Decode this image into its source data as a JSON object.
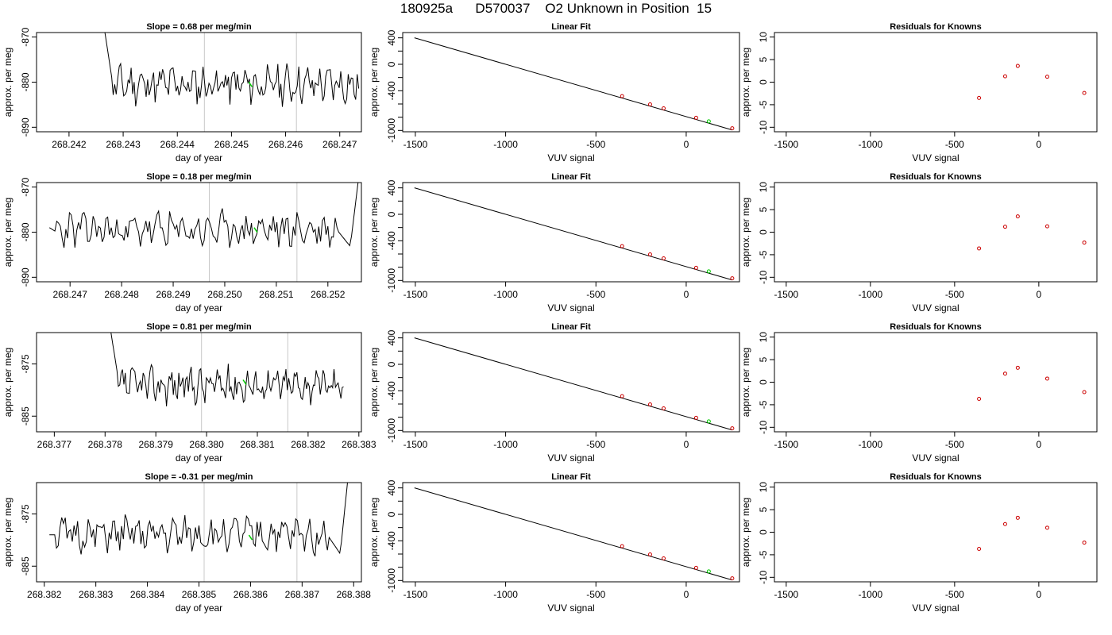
{
  "header": {
    "title": "180925a      D570037    O2 Unknown in Position  15"
  },
  "colors": {
    "series": "#000000",
    "known": "#cc0000",
    "unknown": "#00cc00",
    "marker": "#c8c8c8"
  },
  "chart_data": [
    {
      "type": "line",
      "panel": "drift",
      "row": 0,
      "title": "Slope =  0.68  per meg/min",
      "xlabel": "day of year",
      "ylabel": "approx. per meg",
      "xlim": [
        268.2414,
        268.2474
      ],
      "ylim": [
        -891,
        -869
      ],
      "xticks": [
        268.242,
        268.243,
        268.244,
        268.245,
        268.246,
        268.247
      ],
      "xtick_labels": [
        "268.242",
        "268.243",
        "268.244",
        "268.245",
        "268.246",
        "268.247"
      ],
      "yticks": [
        -870,
        -880,
        -890
      ],
      "ytick_labels": [
        "-870",
        "-880",
        "-890"
      ],
      "markers": [
        268.2445,
        268.2462
      ],
      "trace_start": 268.24265,
      "trace_end": 268.24735,
      "start_y": -868,
      "drop_y": -881,
      "mean": -880.5,
      "amp": 3.2,
      "seed": 11,
      "unknown_point": [
        268.24535,
        -880.5
      ],
      "late_rise": false
    },
    {
      "type": "scatter",
      "panel": "fit",
      "row": 0,
      "title": "Linear Fit",
      "xlabel": "VUV signal",
      "ylabel": "approx. per meg",
      "xlim": [
        -1570,
        295
      ],
      "ylim": [
        -1020,
        480
      ],
      "xticks": [
        -1500,
        -1000,
        -500,
        0
      ],
      "xtick_labels": [
        "-1500",
        "-1000",
        "-500",
        "0"
      ],
      "yticks": [
        400,
        0,
        -400,
        -1000
      ],
      "ytick_labels": [
        "400",
        "0",
        "-400",
        "-1000"
      ],
      "line": [
        [
          -1505,
          400
        ],
        [
          255,
          -993
        ]
      ],
      "knowns": [
        [
          -355,
          -482
        ],
        [
          -200,
          -606
        ],
        [
          -125,
          -666
        ],
        [
          55,
          -808
        ],
        [
          255,
          -968
        ]
      ],
      "unknown": [
        [
          125,
          -862
        ]
      ]
    },
    {
      "type": "scatter",
      "panel": "residuals",
      "row": 0,
      "title": "Residuals for Knowns",
      "xlabel": "VUV signal",
      "ylabel": "approx. per meg",
      "xlim": [
        -1570,
        345
      ],
      "ylim": [
        -11,
        11
      ],
      "xticks": [
        -1500,
        -1000,
        -500,
        0
      ],
      "xtick_labels": [
        "-1500",
        "-1000",
        "-500",
        "0"
      ],
      "yticks": [
        10,
        5,
        0,
        -5,
        -10
      ],
      "ytick_labels": [
        "10",
        "5",
        "0",
        "-5",
        "-10"
      ],
      "points": [
        [
          -355,
          -3.5
        ],
        [
          -200,
          1.3
        ],
        [
          -125,
          3.6
        ],
        [
          50,
          1.2
        ],
        [
          270,
          -2.4
        ]
      ]
    },
    {
      "type": "line",
      "panel": "drift",
      "row": 1,
      "title": "Slope =  0.18  per meg/min",
      "xlabel": "day of year",
      "ylabel": "approx. per meg",
      "xlim": [
        268.24635,
        268.25265
      ],
      "ylim": [
        -891,
        -869
      ],
      "xticks": [
        268.247,
        268.248,
        268.249,
        268.25,
        268.251,
        268.252
      ],
      "xtick_labels": [
        "268.247",
        "268.248",
        "268.249",
        "268.250",
        "268.251",
        "268.252"
      ],
      "yticks": [
        -870,
        -880,
        -890
      ],
      "ytick_labels": [
        "-870",
        "-880",
        "-890"
      ],
      "markers": [
        268.2497,
        268.2514
      ],
      "trace_start": 268.2466,
      "trace_end": 268.2526,
      "start_y": -879,
      "drop_y": -880,
      "mean": -879.5,
      "amp": 3.0,
      "seed": 23,
      "unknown_point": [
        268.2506,
        -879.5
      ],
      "late_rise": true
    },
    {
      "type": "scatter",
      "panel": "fit",
      "row": 1,
      "title": "Linear Fit",
      "xlabel": "VUV signal",
      "ylabel": "approx. per meg",
      "xlim": [
        -1570,
        295
      ],
      "ylim": [
        -1020,
        480
      ],
      "xticks": [
        -1500,
        -1000,
        -500,
        0
      ],
      "xtick_labels": [
        "-1500",
        "-1000",
        "-500",
        "0"
      ],
      "yticks": [
        400,
        0,
        -400,
        -1000
      ],
      "ytick_labels": [
        "400",
        "0",
        "-400",
        "-1000"
      ],
      "line": [
        [
          -1505,
          400
        ],
        [
          255,
          -993
        ]
      ],
      "knowns": [
        [
          -355,
          -482
        ],
        [
          -200,
          -606
        ],
        [
          -125,
          -666
        ],
        [
          55,
          -808
        ],
        [
          255,
          -968
        ]
      ],
      "unknown": [
        [
          125,
          -862
        ]
      ]
    },
    {
      "type": "scatter",
      "panel": "residuals",
      "row": 1,
      "title": "Residuals for Knowns",
      "xlabel": "VUV signal",
      "ylabel": "approx. per meg",
      "xlim": [
        -1570,
        345
      ],
      "ylim": [
        -11,
        11
      ],
      "xticks": [
        -1500,
        -1000,
        -500,
        0
      ],
      "xtick_labels": [
        "-1500",
        "-1000",
        "-500",
        "0"
      ],
      "yticks": [
        10,
        5,
        0,
        -5,
        -10
      ],
      "ytick_labels": [
        "10",
        "5",
        "0",
        "-5",
        "-10"
      ],
      "points": [
        [
          -355,
          -3.6
        ],
        [
          -200,
          1.2
        ],
        [
          -125,
          3.5
        ],
        [
          50,
          1.3
        ],
        [
          270,
          -2.3
        ]
      ]
    },
    {
      "type": "line",
      "panel": "drift",
      "row": 2,
      "title": "Slope =  0.81  per meg/min",
      "xlabel": "day of year",
      "ylabel": "approx. per meg",
      "xlim": [
        268.37665,
        268.38305
      ],
      "ylim": [
        -888,
        -869
      ],
      "xticks": [
        268.377,
        268.378,
        268.379,
        268.38,
        268.381,
        268.382,
        268.383
      ],
      "xtick_labels": [
        "268.377",
        "268.378",
        "268.379",
        "268.380",
        "268.381",
        "268.382",
        "268.383"
      ],
      "yticks": [
        -875,
        -885
      ],
      "ytick_labels": [
        "-875",
        "-885"
      ],
      "markers": [
        268.3799,
        268.3816
      ],
      "trace_start": 268.3781,
      "trace_end": 268.3827,
      "start_y": -868,
      "drop_y": -878,
      "mean": -879,
      "amp": 2.6,
      "seed": 37,
      "unknown_point": [
        268.38075,
        -878.5
      ],
      "late_rise": false
    },
    {
      "type": "scatter",
      "panel": "fit",
      "row": 2,
      "title": "Linear Fit",
      "xlabel": "VUV signal",
      "ylabel": "approx. per meg",
      "xlim": [
        -1570,
        295
      ],
      "ylim": [
        -1020,
        480
      ],
      "xticks": [
        -1500,
        -1000,
        -500,
        0
      ],
      "xtick_labels": [
        "-1500",
        "-1000",
        "-500",
        "0"
      ],
      "yticks": [
        400,
        0,
        -400,
        -1000
      ],
      "ytick_labels": [
        "400",
        "0",
        "-400",
        "-1000"
      ],
      "line": [
        [
          -1505,
          400
        ],
        [
          255,
          -993
        ]
      ],
      "knowns": [
        [
          -355,
          -482
        ],
        [
          -200,
          -606
        ],
        [
          -125,
          -666
        ],
        [
          55,
          -808
        ],
        [
          255,
          -968
        ]
      ],
      "unknown": [
        [
          125,
          -862
        ]
      ]
    },
    {
      "type": "scatter",
      "panel": "residuals",
      "row": 2,
      "title": "Residuals for Knowns",
      "xlabel": "VUV signal",
      "ylabel": "approx. per meg",
      "xlim": [
        -1570,
        345
      ],
      "ylim": [
        -11,
        11
      ],
      "xticks": [
        -1500,
        -1000,
        -500,
        0
      ],
      "xtick_labels": [
        "-1500",
        "-1000",
        "-500",
        "0"
      ],
      "yticks": [
        10,
        5,
        0,
        -5,
        -10
      ],
      "ytick_labels": [
        "10",
        "5",
        "0",
        "-5",
        "-10"
      ],
      "points": [
        [
          -355,
          -3.7
        ],
        [
          -200,
          1.9
        ],
        [
          -125,
          3.2
        ],
        [
          50,
          0.8
        ],
        [
          270,
          -2.2
        ]
      ]
    },
    {
      "type": "line",
      "panel": "drift",
      "row": 3,
      "title": "Slope =  -0.31  per meg/min",
      "xlabel": "day of year",
      "ylabel": "approx. per meg",
      "xlim": [
        268.38185,
        268.38815
      ],
      "ylim": [
        -888,
        -869
      ],
      "xticks": [
        268.382,
        268.383,
        268.384,
        268.385,
        268.386,
        268.387,
        268.388
      ],
      "xtick_labels": [
        "268.382",
        "268.383",
        "268.384",
        "268.385",
        "268.386",
        "268.387",
        "268.388"
      ],
      "yticks": [
        -875,
        -885
      ],
      "ytick_labels": [
        "-875",
        "-885"
      ],
      "markers": [
        268.3851,
        268.3869
      ],
      "trace_start": 268.3821,
      "trace_end": 268.3879,
      "start_y": -879,
      "drop_y": -879,
      "mean": -879,
      "amp": 2.6,
      "seed": 51,
      "unknown_point": [
        268.386,
        -879.5
      ],
      "late_rise": true
    },
    {
      "type": "scatter",
      "panel": "fit",
      "row": 3,
      "title": "Linear Fit",
      "xlabel": "VUV signal",
      "ylabel": "approx. per meg",
      "xlim": [
        -1570,
        295
      ],
      "ylim": [
        -1020,
        480
      ],
      "xticks": [
        -1500,
        -1000,
        -500,
        0
      ],
      "xtick_labels": [
        "-1500",
        "-1000",
        "-500",
        "0"
      ],
      "yticks": [
        400,
        0,
        -400,
        -1000
      ],
      "ytick_labels": [
        "400",
        "0",
        "-400",
        "-1000"
      ],
      "line": [
        [
          -1505,
          400
        ],
        [
          255,
          -993
        ]
      ],
      "knowns": [
        [
          -355,
          -482
        ],
        [
          -200,
          -606
        ],
        [
          -125,
          -666
        ],
        [
          55,
          -808
        ],
        [
          255,
          -968
        ]
      ],
      "unknown": [
        [
          125,
          -862
        ]
      ]
    },
    {
      "type": "scatter",
      "panel": "residuals",
      "row": 3,
      "title": "Residuals for Knowns",
      "xlabel": "VUV signal",
      "ylabel": "approx. per meg",
      "xlim": [
        -1570,
        345
      ],
      "ylim": [
        -11,
        11
      ],
      "xticks": [
        -1500,
        -1000,
        -500,
        0
      ],
      "xtick_labels": [
        "-1500",
        "-1000",
        "-500",
        "0"
      ],
      "yticks": [
        10,
        5,
        0,
        -5,
        -10
      ],
      "ytick_labels": [
        "10",
        "5",
        "0",
        "-5",
        "-10"
      ],
      "points": [
        [
          -355,
          -3.7
        ],
        [
          -200,
          1.8
        ],
        [
          -125,
          3.2
        ],
        [
          50,
          1.0
        ],
        [
          270,
          -2.3
        ]
      ]
    }
  ]
}
